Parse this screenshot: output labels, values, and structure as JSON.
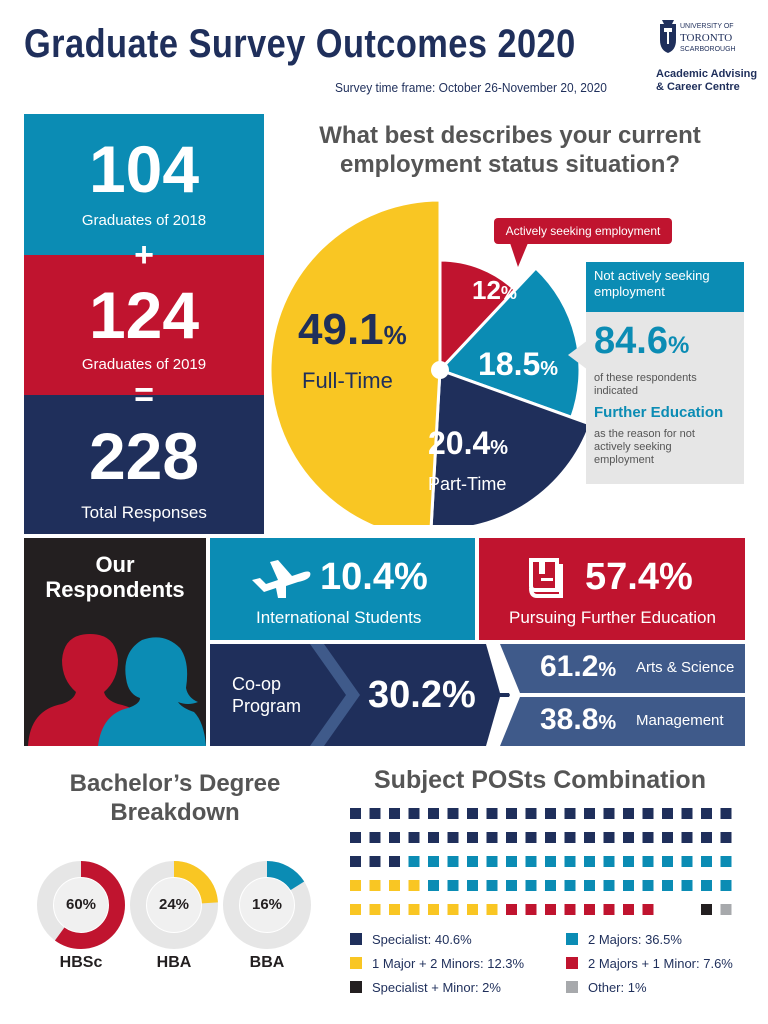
{
  "header": {
    "title": "Graduate Survey Outcomes 2020",
    "time_frame": "Survey time frame: October 26-November 20, 2020",
    "logo": {
      "line1": "UNIVERSITY OF",
      "line2": "TORONTO",
      "line3": "SCARBOROUGH",
      "line4": "Academic Advising",
      "line5": "& Career Centre"
    }
  },
  "totals": {
    "n2018": "104",
    "n2018_label": "Graduates of 2018",
    "plus": "+",
    "n2019": "124",
    "n2019_label": "Graduates of 2019",
    "equals": "=",
    "total": "228",
    "total_label": "Total Responses"
  },
  "employment": {
    "question": "What best describes your current employment status situation?",
    "fulltime_pct": "49.1",
    "fulltime_label": "Full-Time",
    "seeking_pct": "12",
    "seeking_label": "Actively seeking employment",
    "notseeking_pct": "18.5",
    "notseeking_label": "Not actively seeking employment",
    "parttime_pct": "20.4",
    "parttime_label": "Part-Time",
    "pct_sign": "%",
    "callout_pct": "84.6",
    "callout_text1": "of these respondents indicated",
    "callout_highlight": "Further Education",
    "callout_text2": "as the reason for not actively seeking employment"
  },
  "chart_data": [
    {
      "type": "pie",
      "title": "What best describes your current employment status situation?",
      "categories": [
        "Full-Time",
        "Actively seeking employment",
        "Not actively seeking employment",
        "Part-Time"
      ],
      "values": [
        49.1,
        12,
        18.5,
        20.4
      ],
      "colors": [
        "#f9c623",
        "#c0142f",
        "#0b8cb4",
        "#1f2f5b"
      ]
    },
    {
      "type": "pie",
      "title": "Bachelor's Degree Breakdown",
      "categories": [
        "HBSc",
        "HBA",
        "BBA"
      ],
      "values": [
        60,
        24,
        16
      ]
    },
    {
      "type": "waffle",
      "title": "Subject POSts Combination",
      "categories": [
        "Specialist",
        "1 Major + 2 Minors",
        "Specialist + Minor",
        "2 Majors",
        "2 Majors + 1 Minor",
        "Other"
      ],
      "values": [
        40.6,
        12.3,
        2,
        36.5,
        7.6,
        1
      ],
      "colors": [
        "#1f2f5b",
        "#f9c623",
        "#231f20",
        "#0b8cb4",
        "#c0142f",
        "#a7a9ac"
      ]
    }
  ],
  "respondents": {
    "title": "Our Respondents",
    "intl_pct": "10.4%",
    "intl_label": "International Students",
    "further_pct": "57.4%",
    "further_label": "Pursuing Further Education",
    "coop_label": "Co-op Program",
    "coop_pct": "30.2%",
    "arts_pct": "61.2",
    "arts_label": "Arts & Science",
    "mgmt_pct": "38.8",
    "mgmt_label": "Management",
    "pct_sign": "%"
  },
  "degrees": {
    "title": "Bachelor’s Degree Breakdown",
    "items": [
      {
        "label": "HBSc",
        "pct": "60%",
        "value": 60,
        "color": "#c0142f"
      },
      {
        "label": "HBA",
        "pct": "24%",
        "value": 24,
        "color": "#f9c623"
      },
      {
        "label": "BBA",
        "pct": "16%",
        "value": 16,
        "color": "#0b8cb4"
      }
    ]
  },
  "posts": {
    "title": "Subject POSts Combination",
    "legend": [
      {
        "label": "Specialist: 40.6%",
        "color": "#1f2f5b"
      },
      {
        "label": "2 Majors: 36.5%",
        "color": "#0b8cb4"
      },
      {
        "label": "1 Major + 2 Minors: 12.3%",
        "color": "#f9c623"
      },
      {
        "label": "2 Majors + 1 Minor: 7.6%",
        "color": "#c0142f"
      },
      {
        "label": "Specialist + Minor: 2%",
        "color": "#231f20"
      },
      {
        "label": "Other: 1%",
        "color": "#a7a9ac"
      }
    ],
    "waffle_rows": [
      "NNNNNNNNNNNNNNNNNNNN",
      "NNNNNNNNNNNNNNNNNNNN",
      "NNNTTTTTTTTTTTTTTTTT",
      "YYYYTTTTTTTTTTTTTTTT",
      "YYYYYYYYRRRRRRRRBBKG"
    ]
  }
}
